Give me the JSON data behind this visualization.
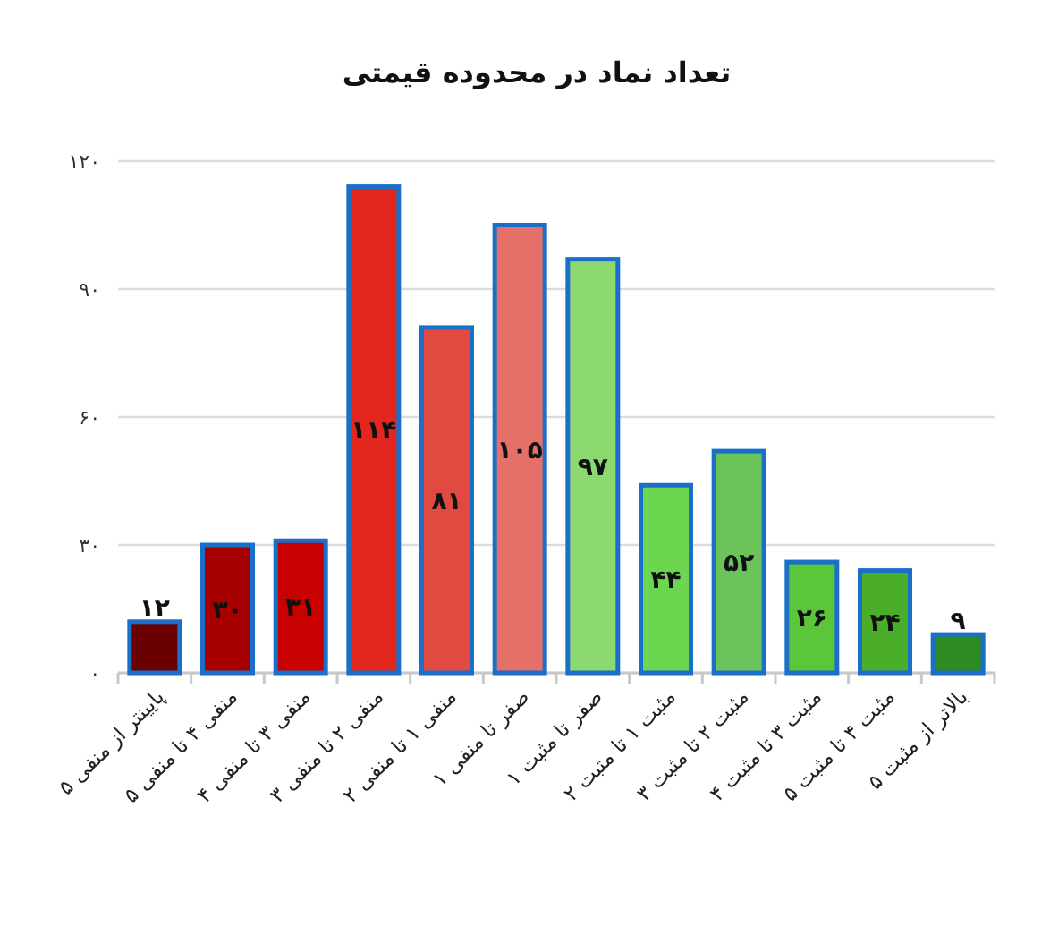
{
  "chart_data": {
    "type": "bar",
    "title": "تعداد نماد در محدوده قیمتی",
    "categories": [
      "پایینتر از منفی ۵",
      "منفی ۴ تا منفی ۵",
      "منفی ۳ تا منفی ۴",
      "منفی ۲ تا منفی ۳",
      "منفی ۱ تا منفی ۲",
      "صفر تا منفی ۱",
      "صفر تا مثبت ۱",
      "مثبت ۱ تا مثبت ۲",
      "مثبت ۲ تا مثبت ۳",
      "مثبت ۳ تا مثبت ۴",
      "مثبت ۴ تا مثبت ۵",
      "بالاتر از مثبت ۵"
    ],
    "values": [
      12,
      30,
      31,
      114,
      81,
      105,
      97,
      44,
      52,
      26,
      24,
      9
    ],
    "value_labels": [
      "۱۲",
      "۳۰",
      "۳۱",
      "۱۱۴",
      "۸۱",
      "۱۰۵",
      "۹۷",
      "۴۴",
      "۵۲",
      "۲۶",
      "۲۴",
      "۹"
    ],
    "colors": [
      "#6b0000",
      "#a80000",
      "#c80000",
      "#e3261e",
      "#e04a40",
      "#e5706a",
      "#8cd96f",
      "#6dd650",
      "#6cc35a",
      "#5cc63a",
      "#4aae2a",
      "#2e8a23"
    ],
    "ylim": [
      0,
      120
    ],
    "yticks": [
      {
        "value": 0,
        "label": "۰"
      },
      {
        "value": 30,
        "label": "۳۰"
      },
      {
        "value": 60,
        "label": "۶۰"
      },
      {
        "value": 90,
        "label": "۹۰"
      },
      {
        "value": 120,
        "label": "۱۲۰"
      }
    ],
    "grid": "y"
  }
}
